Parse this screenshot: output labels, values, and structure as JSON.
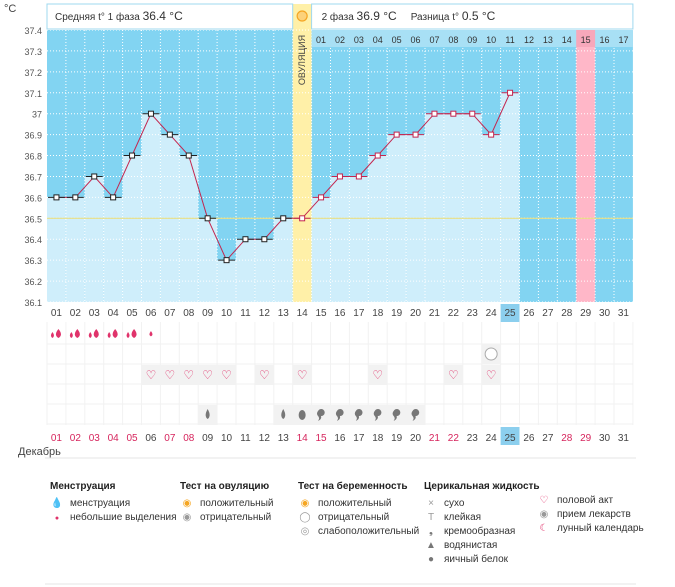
{
  "units": "°C",
  "month": "Декабрь",
  "header": {
    "phase1_label": "Средняя t° 1 фаза",
    "phase1_value": "36.4 °C",
    "phase2_label": "2 фаза",
    "phase2_value": "36.9 °C",
    "diff_label": "Разница t°",
    "diff_value": "0.5 °C"
  },
  "ovulation_label": "ОВУЛЯЦИЯ",
  "chart_data": {
    "type": "line",
    "days": [
      "01",
      "02",
      "03",
      "04",
      "05",
      "06",
      "07",
      "08",
      "09",
      "10",
      "11",
      "12",
      "13",
      "14",
      "15",
      "16",
      "17",
      "18",
      "19",
      "20",
      "21",
      "22",
      "23",
      "24",
      "25",
      "26",
      "27",
      "28",
      "29",
      "30",
      "31"
    ],
    "temperatures": [
      36.6,
      36.6,
      36.7,
      36.6,
      36.8,
      37.0,
      36.9,
      36.8,
      36.5,
      36.3,
      36.4,
      36.4,
      36.5,
      36.5,
      36.6,
      36.7,
      36.7,
      36.8,
      36.9,
      36.9,
      37.0,
      37.0,
      37.0,
      36.9,
      37.1,
      null,
      null,
      null,
      null,
      null,
      null
    ],
    "y_ticks": [
      "37.4",
      "37.3",
      "37.2",
      "37.1",
      "37",
      "36.9",
      "36.8",
      "36.7",
      "36.6",
      "36.5",
      "36.4",
      "36.3",
      "36.2",
      "36.1"
    ],
    "ylim": [
      36.1,
      37.4
    ],
    "coverline": 36.5,
    "ovulation_day": "14",
    "current_day": "25",
    "phase2_days": [
      "01",
      "02",
      "03",
      "04",
      "05",
      "06",
      "07",
      "08",
      "09",
      "10",
      "11",
      "12",
      "13",
      "14",
      "15",
      "16",
      "17"
    ],
    "highlighted_phase2_day": "15",
    "red_bottom_days": [
      "01",
      "02",
      "03",
      "04",
      "05",
      "07",
      "08",
      "14",
      "15",
      "21",
      "22",
      "28",
      "29"
    ],
    "rows": {
      "menstruation": {
        "01": "big",
        "02": "big",
        "03": "big",
        "04": "big",
        "05": "big",
        "06": "small"
      },
      "pregnancy_test": {
        "24": "negative"
      },
      "intercourse": [
        "06",
        "07",
        "08",
        "09",
        "10",
        "12",
        "14",
        "18",
        "22",
        "24"
      ],
      "cervical": {
        "09": "watery",
        "13": "watery",
        "14": "eggwhite",
        "15": "creamy",
        "16": "creamy",
        "17": "creamy",
        "18": "creamy",
        "19": "creamy",
        "20": "creamy"
      }
    },
    "colors": {
      "phase1": "#cfeefb",
      "phase2": "#82d4f2",
      "line": "#c3264f",
      "ovulation": "#fff0a8",
      "coverline": "#f3e98e",
      "today": "#8ccfee",
      "pink": "#ffb7c8"
    }
  },
  "legend": {
    "menstruation": {
      "title": "Менструация",
      "items": [
        "менструация",
        "небольшие выделения"
      ]
    },
    "ovulation_test": {
      "title": "Тест на овуляцию",
      "items": [
        "положительный",
        "отрицательный"
      ]
    },
    "pregnancy_test": {
      "title": "Тест на беременность",
      "items": [
        "положительный",
        "отрицательный",
        "слабоположительный"
      ]
    },
    "cervical": {
      "title": "Церикальная жидкость",
      "items": [
        "сухо",
        "клейкая",
        "кремообразная",
        "водянистая",
        "яичный белок"
      ]
    },
    "other": {
      "items": [
        "половой акт",
        "прием лекарств",
        "лунный календарь"
      ]
    }
  }
}
